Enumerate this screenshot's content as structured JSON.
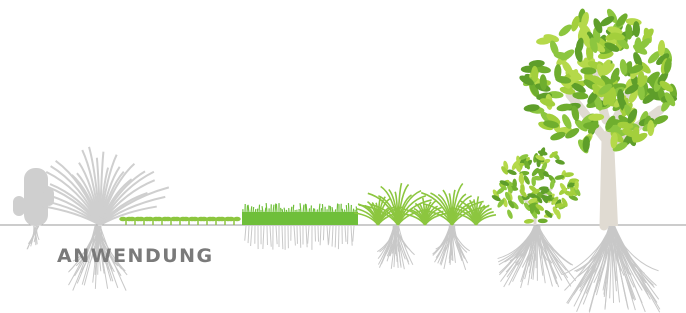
{
  "label": "ANWENDUNG"
}
